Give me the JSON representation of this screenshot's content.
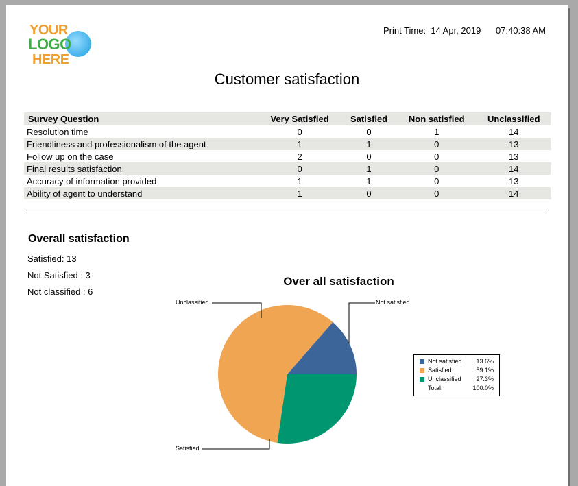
{
  "header": {
    "logo": {
      "line1": "YOUR",
      "line2": "LOGO",
      "line3": "HERE"
    },
    "print_time_label": "Print Time:",
    "print_date": "14 Apr, 2019",
    "print_clock": "07:40:38 AM"
  },
  "title": "Customer satisfaction",
  "table": {
    "headers": [
      "Survey Question",
      "Very Satisfied",
      "Satisfied",
      "Non satisfied",
      "Unclassified"
    ],
    "rows": [
      [
        "Resolution time",
        "0",
        "0",
        "1",
        "14"
      ],
      [
        "Friendliness and professionalism of the agent",
        "1",
        "1",
        "0",
        "13"
      ],
      [
        "Follow up on the case",
        "2",
        "0",
        "0",
        "13"
      ],
      [
        "Final results satisfaction",
        "0",
        "1",
        "0",
        "14"
      ],
      [
        "Accuracy of information provided",
        "1",
        "1",
        "0",
        "13"
      ],
      [
        "Ability of agent to understand",
        "1",
        "0",
        "0",
        "14"
      ]
    ]
  },
  "overall": {
    "heading": "Overall satisfaction",
    "satisfied": "Satisfied: 13",
    "not_satisfied": "Not Satisfied : 3",
    "not_classified": "Not classified : 6"
  },
  "chart_data": {
    "type": "pie",
    "title": "Over all satisfaction",
    "slices": [
      {
        "label": "Not satisfied",
        "percent_text": "13.6%",
        "value": 13.6,
        "color": "#3c6699"
      },
      {
        "label": "Satisfied",
        "percent_text": "59.1%",
        "value": 59.1,
        "color": "#f0a552"
      },
      {
        "label": "Unclassified",
        "percent_text": "27.3%",
        "value": 27.3,
        "color": "#009670"
      }
    ],
    "total_label": "Total:",
    "total_text": "100.0%",
    "legend_position": "right"
  }
}
